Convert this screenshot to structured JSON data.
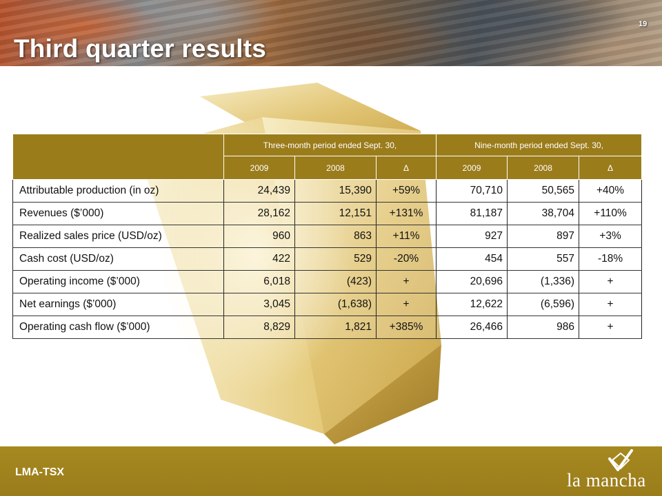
{
  "header": {
    "title": "Third quarter results",
    "page_number": "19"
  },
  "table": {
    "group_headers": [
      "Three-month period ended Sept. 30,",
      "Nine-month period ended Sept. 30,"
    ],
    "sub_headers": [
      "2009",
      "2008",
      "Δ",
      "2009",
      "2008",
      "Δ"
    ],
    "rows": [
      {
        "label": "Attributable production (in oz)",
        "q3_2009": "24,439",
        "q3_2008": "15,390",
        "q3_delta": "+59%",
        "ytd_2009": "70,710",
        "ytd_2008": "50,565",
        "ytd_delta": "+40%"
      },
      {
        "label": "Revenues ($’000)",
        "q3_2009": "28,162",
        "q3_2008": "12,151",
        "q3_delta": "+131%",
        "ytd_2009": "81,187",
        "ytd_2008": "38,704",
        "ytd_delta": "+110%"
      },
      {
        "label": "Realized sales price (USD/oz)",
        "q3_2009": "960",
        "q3_2008": "863",
        "q3_delta": "+11%",
        "ytd_2009": "927",
        "ytd_2008": "897",
        "ytd_delta": "+3%"
      },
      {
        "label": "Cash cost (USD/oz)",
        "q3_2009": "422",
        "q3_2008": "529",
        "q3_delta": "-20%",
        "ytd_2009": "454",
        "ytd_2008": "557",
        "ytd_delta": "-18%"
      },
      {
        "label": "Operating income ($’000)",
        "q3_2009": "6,018",
        "q3_2008": "(423)",
        "q3_delta": "+",
        "ytd_2009": "20,696",
        "ytd_2008": "(1,336)",
        "ytd_delta": "+"
      },
      {
        "label": "Net earnings ($’000)",
        "q3_2009": "3,045",
        "q3_2008": "(1,638)",
        "q3_delta": "+",
        "ytd_2009": "12,622",
        "ytd_2008": "(6,596)",
        "ytd_delta": "+"
      },
      {
        "label": "Operating cash flow ($’000)",
        "q3_2009": "8,829",
        "q3_2008": "1,821",
        "q3_delta": "+385%",
        "ytd_2009": "26,466",
        "ytd_2008": "986",
        "ytd_delta": "+"
      }
    ]
  },
  "footer": {
    "ticker": "LMA-TSX",
    "brand_name": "la mancha",
    "brand_logo_icon": "checkmark-diamond-icon"
  },
  "colors": {
    "gold_accent": "#9b7c1b",
    "footer_gold": "#a78921",
    "title_text": "#ffffff"
  }
}
